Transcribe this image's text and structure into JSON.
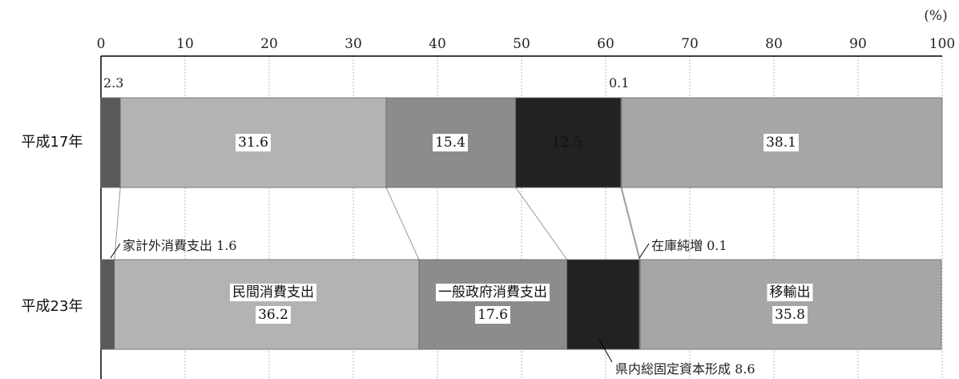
{
  "chart_data": {
    "type": "bar",
    "stacked": true,
    "orientation": "horizontal",
    "unit_label": "(%)",
    "xlim": [
      0,
      100
    ],
    "x_ticks": [
      "0",
      "10",
      "20",
      "30",
      "40",
      "50",
      "60",
      "70",
      "80",
      "90",
      "100"
    ],
    "categories": [
      "平成17年",
      "平成23年"
    ],
    "series": [
      {
        "name": "家計外消費支出",
        "values": [
          2.3,
          1.6
        ],
        "color": "#595959"
      },
      {
        "name": "民間消費支出",
        "values": [
          31.6,
          36.2
        ],
        "color": "#b3b3b3"
      },
      {
        "name": "一般政府消費支出",
        "values": [
          15.4,
          17.6
        ],
        "color": "#8c8c8c"
      },
      {
        "name": "県内総固定資本形成",
        "values": [
          12.5,
          8.6
        ],
        "color": "#222222"
      },
      {
        "name": "在庫純増",
        "values": [
          0.1,
          0.1
        ],
        "color": "#e0e0e0"
      },
      {
        "name": "移輸出",
        "values": [
          38.1,
          35.8
        ],
        "color": "#a6a6a6"
      }
    ],
    "value_labels": {
      "r2005": [
        "2.3",
        "31.6",
        "15.4",
        "12.5",
        "0.1",
        "38.1"
      ],
      "r2011": [
        "1.6",
        "36.2",
        "17.6",
        "8.6",
        "0.1",
        "35.8"
      ]
    },
    "annotations": {
      "s0": "家計外消費支出  1.6",
      "s3": "県内総固定資本形成  8.6",
      "s4": "在庫純増  0.1"
    }
  }
}
